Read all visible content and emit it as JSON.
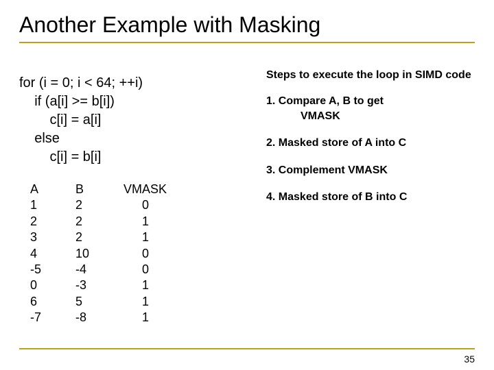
{
  "title": "Another Example with Masking",
  "rule_color": "#b8a316",
  "code": {
    "l1": "for (i = 0; i < 64; ++i)",
    "l2": "    if (a[i] >= b[i])",
    "l3": "        c[i] = a[i]",
    "l4": "    else",
    "l5": "        c[i] = b[i]"
  },
  "steps": {
    "heading": "Steps to execute the loop in SIMD code",
    "s1a": "1. Compare A, B to get",
    "s1b": "VMASK",
    "s2": "2. Masked store of A into C",
    "s3": "3. Complement VMASK",
    "s4": "4. Masked store of B into C"
  },
  "table": {
    "a": {
      "h": "A",
      "r": [
        "1",
        "2",
        "3",
        "4",
        "-5",
        "0",
        "6",
        "-7"
      ]
    },
    "b": {
      "h": "B",
      "r": [
        "2",
        "2",
        "2",
        "10",
        "-4",
        "-3",
        "5",
        "-8"
      ]
    },
    "m": {
      "h": "VMASK",
      "r": [
        "0",
        "1",
        "1",
        "0",
        "0",
        "1",
        "1",
        "1"
      ]
    },
    "fontsize": 18
  },
  "pagenum": "35",
  "colors": {
    "text": "#000000",
    "bg": "#ffffff"
  }
}
